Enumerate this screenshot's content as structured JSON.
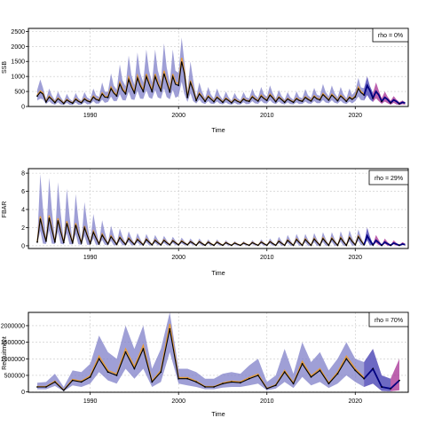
{
  "colors": {
    "band": "#7f7fc8",
    "median": "#000000",
    "estimate": "#e69b38",
    "forecast_mid": "#2b6fd6",
    "forecast_band": "#a0208c",
    "forecast_line": "#00007f",
    "grid": "#c8c8c8"
  },
  "chart_data": [
    {
      "type": "area",
      "panel": "ssb",
      "xlabel": "Time",
      "ylabel": "SSB",
      "legend": "rho = 0%",
      "legend_position": "top-right",
      "grid": true,
      "xlim": [
        1983,
        2026
      ],
      "ylim": [
        0,
        2600
      ],
      "x_ticks": [
        1990,
        2000,
        2010,
        2020
      ],
      "y_ticks": [
        0,
        500,
        1000,
        1500,
        2000,
        2500
      ],
      "y_tick_labels": [
        "0",
        "500",
        "1000",
        "1500",
        "2000",
        "2500"
      ],
      "seasonal": true,
      "forecast_start": 2021,
      "years": [
        1984,
        1985,
        1986,
        1987,
        1988,
        1989,
        1990,
        1991,
        1992,
        1993,
        1994,
        1995,
        1996,
        1997,
        1998,
        1999,
        2000,
        2001,
        2002,
        2003,
        2004,
        2005,
        2006,
        2007,
        2008,
        2009,
        2010,
        2011,
        2012,
        2013,
        2014,
        2015,
        2016,
        2017,
        2018,
        2019,
        2020,
        2021,
        2022,
        2023,
        2024,
        2025
      ],
      "peak": [
        480,
        320,
        260,
        220,
        240,
        250,
        320,
        420,
        600,
        750,
        900,
        950,
        1000,
        1000,
        1100,
        1000,
        1500,
        800,
        420,
        330,
        300,
        260,
        230,
        250,
        320,
        350,
        380,
        300,
        250,
        260,
        300,
        330,
        400,
        380,
        350,
        300,
        600,
        700,
        500,
        300,
        220,
        140
      ],
      "trough": [
        350,
        150,
        130,
        100,
        110,
        120,
        150,
        200,
        300,
        350,
        420,
        450,
        500,
        500,
        520,
        480,
        700,
        300,
        200,
        170,
        160,
        140,
        120,
        130,
        170,
        180,
        200,
        160,
        140,
        140,
        170,
        180,
        220,
        210,
        190,
        170,
        320,
        380,
        280,
        170,
        120,
        90
      ],
      "upper_peak": [
        900,
        600,
        500,
        420,
        450,
        480,
        600,
        800,
        1100,
        1400,
        1700,
        1800,
        1900,
        1900,
        2100,
        1900,
        2300,
        1500,
        800,
        650,
        600,
        500,
        450,
        480,
        600,
        650,
        700,
        550,
        480,
        500,
        580,
        620,
        750,
        700,
        650,
        600,
        950,
        1000,
        800,
        500,
        350,
        200
      ],
      "lower_trough": [
        200,
        80,
        60,
        50,
        50,
        60,
        80,
        100,
        150,
        180,
        200,
        220,
        250,
        250,
        260,
        240,
        350,
        150,
        100,
        80,
        80,
        70,
        60,
        65,
        85,
        90,
        100,
        80,
        70,
        70,
        85,
        90,
        110,
        105,
        95,
        85,
        180,
        200,
        150,
        90,
        60,
        50
      ]
    },
    {
      "type": "area",
      "panel": "fbar",
      "xlabel": "Time",
      "ylabel": "FBAR",
      "legend": "rho = 29%",
      "legend_position": "top-right",
      "grid": true,
      "xlim": [
        1983,
        2026
      ],
      "ylim": [
        -0.3,
        8.5
      ],
      "x_ticks": [
        1990,
        2000,
        2010,
        2020
      ],
      "y_ticks": [
        0,
        2,
        4,
        6,
        8
      ],
      "y_tick_labels": [
        "0",
        "2",
        "4",
        "6",
        "8"
      ],
      "seasonal": true,
      "forecast_start": 2021,
      "years": [
        1984,
        1985,
        1986,
        1987,
        1988,
        1989,
        1990,
        1991,
        1992,
        1993,
        1994,
        1995,
        1996,
        1997,
        1998,
        1999,
        2000,
        2001,
        2002,
        2003,
        2004,
        2005,
        2006,
        2007,
        2008,
        2009,
        2010,
        2011,
        2012,
        2013,
        2014,
        2015,
        2016,
        2017,
        2018,
        2019,
        2020,
        2021,
        2022,
        2023,
        2024,
        2025
      ],
      "peak": [
        3.0,
        3.1,
        2.8,
        2.5,
        2.3,
        2.0,
        1.5,
        1.2,
        1.0,
        0.9,
        0.8,
        0.7,
        0.7,
        0.6,
        0.6,
        0.55,
        0.5,
        0.45,
        0.45,
        0.4,
        0.4,
        0.35,
        0.3,
        0.3,
        0.35,
        0.4,
        0.45,
        0.5,
        0.6,
        0.7,
        0.7,
        0.75,
        0.8,
        0.8,
        0.85,
        0.9,
        1.0,
        1.1,
        0.6,
        0.4,
        0.3,
        0.2
      ],
      "trough": [
        0.4,
        0.5,
        0.4,
        0.35,
        0.3,
        0.3,
        0.25,
        0.2,
        0.2,
        0.15,
        0.15,
        0.15,
        0.1,
        0.1,
        0.1,
        0.1,
        0.1,
        0.1,
        0.05,
        0.05,
        0.05,
        0.05,
        0.05,
        0.05,
        0.05,
        0.05,
        0.05,
        0.05,
        0.05,
        0.05,
        0.05,
        0.05,
        0.05,
        0.05,
        0.05,
        0.05,
        0.1,
        0.1,
        0.1,
        0.05,
        0.05,
        0.05
      ],
      "upper_peak": [
        7.9,
        7.5,
        7.0,
        6.3,
        5.7,
        4.8,
        3.5,
        2.8,
        2.2,
        1.9,
        1.6,
        1.4,
        1.3,
        1.2,
        1.1,
        1.0,
        0.9,
        0.8,
        0.8,
        0.7,
        0.7,
        0.6,
        0.5,
        0.5,
        0.6,
        0.7,
        0.8,
        1.0,
        1.2,
        1.3,
        1.3,
        1.4,
        1.5,
        1.5,
        1.6,
        1.7,
        1.8,
        2.0,
        1.2,
        0.8,
        0.6,
        0.4
      ],
      "lower_trough": [
        0.2,
        0.2,
        0.2,
        0.15,
        0.15,
        0.1,
        0.1,
        0.1,
        0.05,
        0.05,
        0.05,
        0.05,
        0.05,
        0.05,
        0.05,
        0.05,
        0.05,
        0.05,
        0.02,
        0.02,
        0.02,
        0.02,
        0.02,
        0.02,
        0.02,
        0.02,
        0.02,
        0.02,
        0.02,
        0.02,
        0.02,
        0.02,
        0.02,
        0.02,
        0.02,
        0.02,
        0.05,
        0.05,
        0.05,
        0.02,
        0.02,
        0.02
      ]
    },
    {
      "type": "area",
      "panel": "recruitment",
      "xlabel": "Time",
      "ylabel": "Recruitment",
      "legend": "rho = 70%",
      "legend_position": "top-right",
      "grid": true,
      "xlim": [
        1983,
        2026
      ],
      "ylim": [
        -10000,
        2400000
      ],
      "x_ticks": [
        1990,
        2000,
        2010,
        2020
      ],
      "y_ticks": [
        0,
        500000,
        1000000,
        1500000,
        2000000
      ],
      "y_tick_labels": [
        "0",
        "500000",
        "1000000",
        "1500000",
        "2000000"
      ],
      "seasonal": false,
      "forecast_start": 2021,
      "years": [
        1984,
        1985,
        1986,
        1987,
        1988,
        1989,
        1990,
        1991,
        1992,
        1993,
        1994,
        1995,
        1996,
        1997,
        1998,
        1999,
        2000,
        2001,
        2002,
        2003,
        2004,
        2005,
        2006,
        2007,
        2008,
        2009,
        2010,
        2011,
        2012,
        2013,
        2014,
        2015,
        2016,
        2017,
        2018,
        2019,
        2020,
        2021,
        2022,
        2023,
        2024,
        2025
      ],
      "median": [
        150000,
        150000,
        300000,
        50000,
        350000,
        300000,
        450000,
        1000000,
        600000,
        500000,
        1200000,
        700000,
        1300000,
        300000,
        600000,
        1900000,
        400000,
        400000,
        300000,
        150000,
        150000,
        250000,
        300000,
        280000,
        400000,
        500000,
        100000,
        200000,
        600000,
        250000,
        850000,
        450000,
        650000,
        250000,
        550000,
        1000000,
        650000,
        400000,
        700000,
        150000,
        100000,
        350000
      ],
      "upper": [
        280000,
        300000,
        550000,
        150000,
        650000,
        600000,
        850000,
        1700000,
        1200000,
        1000000,
        2000000,
        1300000,
        2000000,
        700000,
        1300000,
        2400000,
        700000,
        700000,
        600000,
        400000,
        400000,
        550000,
        600000,
        550000,
        800000,
        1000000,
        300000,
        500000,
        1300000,
        550000,
        1500000,
        900000,
        1200000,
        650000,
        1000000,
        1500000,
        1000000,
        900000,
        1300000,
        500000,
        400000,
        1000000
      ],
      "lower": [
        80000,
        80000,
        180000,
        20000,
        200000,
        150000,
        250000,
        600000,
        350000,
        250000,
        700000,
        400000,
        700000,
        150000,
        300000,
        1200000,
        250000,
        200000,
        150000,
        80000,
        80000,
        130000,
        150000,
        150000,
        200000,
        250000,
        50000,
        100000,
        300000,
        120000,
        450000,
        200000,
        300000,
        120000,
        250000,
        500000,
        300000,
        150000,
        250000,
        30000,
        20000,
        50000
      ]
    }
  ]
}
